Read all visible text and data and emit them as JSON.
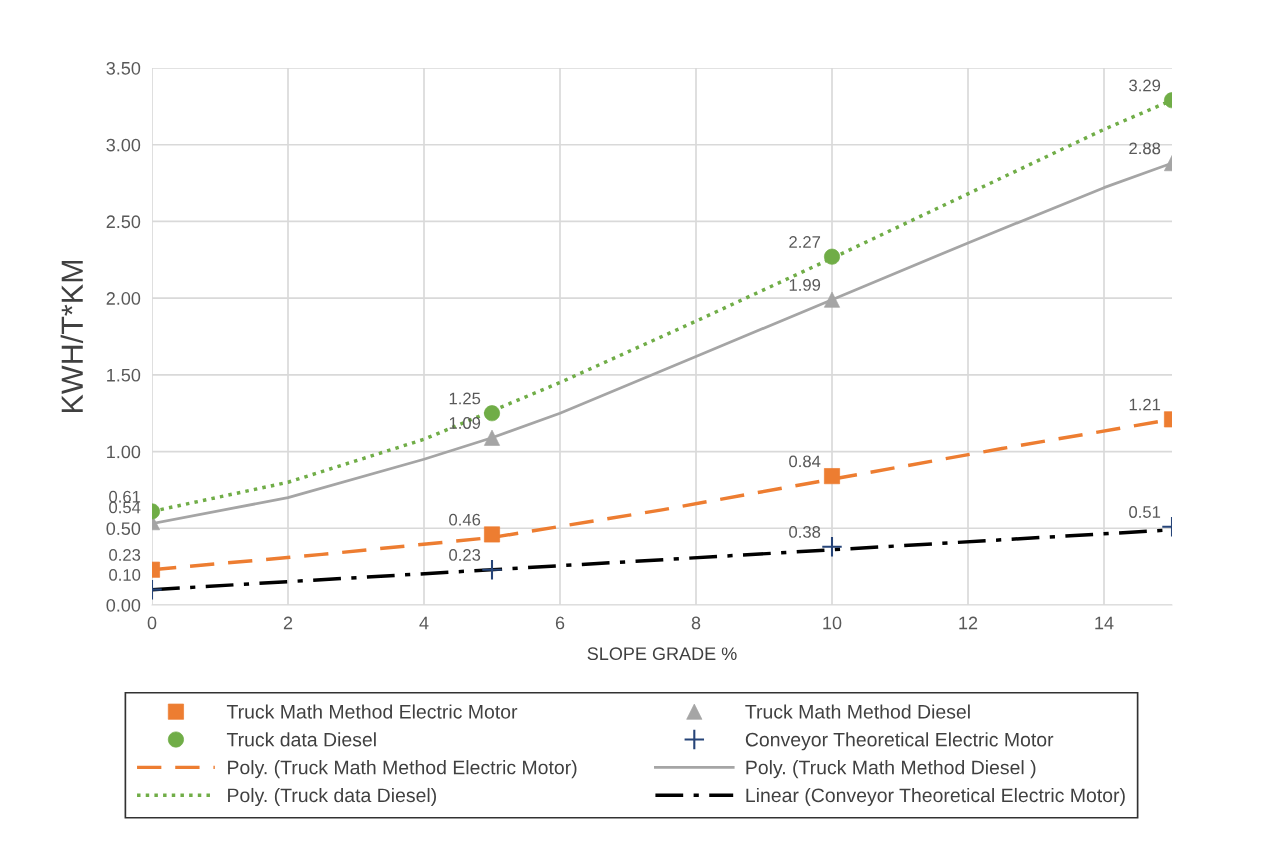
{
  "chart_data": {
    "type": "scatter",
    "xlabel": "SLOPE GRADE %",
    "ylabel": "KWH/T*KM",
    "xlim": [
      0,
      15
    ],
    "xticks": [
      0,
      2,
      4,
      6,
      8,
      10,
      12,
      14
    ],
    "ylim": [
      0,
      3.5
    ],
    "yticks": [
      {
        "value": 0,
        "label": "0.00"
      },
      {
        "value": 0.5,
        "label": "0.50"
      },
      {
        "value": 1,
        "label": "1.00"
      },
      {
        "value": 1.5,
        "label": "1.50"
      },
      {
        "value": 2,
        "label": "2.00"
      },
      {
        "value": 2.5,
        "label": "2.50"
      },
      {
        "value": 3,
        "label": "3.00"
      },
      {
        "value": 3.5,
        "label": "3.50"
      }
    ],
    "grid": true,
    "legend": "bottom",
    "series": [
      {
        "name": "Truck Math Method Electric Motor",
        "marker": "square",
        "color": "#ed7d31",
        "x": [
          0,
          5,
          10,
          15
        ],
        "values": [
          0.23,
          0.46,
          0.84,
          1.21
        ],
        "value_labels": [
          "0.23",
          "0.46",
          "0.84",
          "1.21"
        ]
      },
      {
        "name": "Truck Math Method Diesel",
        "marker": "triangle",
        "color": "#a5a5a5",
        "x": [
          0,
          5,
          10,
          15
        ],
        "values": [
          0.54,
          1.09,
          1.99,
          2.88
        ],
        "value_labels": [
          "0.54",
          "1.09",
          "1.99",
          "2.88"
        ]
      },
      {
        "name": "Truck data Diesel",
        "marker": "circle",
        "color": "#70ad47",
        "x": [
          0,
          5,
          10,
          15
        ],
        "values": [
          0.61,
          1.25,
          2.27,
          3.29
        ],
        "value_labels": [
          "0.61",
          "1.25",
          "2.27",
          "3.29"
        ]
      },
      {
        "name": "Conveyor Theoretical Electric Motor",
        "marker": "cross",
        "color": "#264478",
        "x": [
          0,
          5,
          10,
          15
        ],
        "values": [
          0.1,
          0.23,
          0.38,
          0.51
        ],
        "value_labels": [
          "0.10",
          "0.23",
          "0.38",
          "0.51"
        ]
      },
      {
        "name": "Poly. (Truck Math Method Electric Motor)",
        "type": "line",
        "line_style": "dashed",
        "color": "#ed7d31",
        "x": [
          0,
          2.5,
          5,
          7.5,
          10,
          12.5,
          15
        ],
        "values": [
          0.23,
          0.33,
          0.44,
          0.62,
          0.82,
          1.02,
          1.21
        ]
      },
      {
        "name": "Poly. (Truck Math Method Diesel )",
        "type": "line",
        "line_style": "solid",
        "color": "#a5a5a5",
        "x": [
          0,
          2,
          4,
          5,
          6,
          8,
          10,
          12,
          14,
          15
        ],
        "values": [
          0.53,
          0.7,
          0.95,
          1.09,
          1.25,
          1.62,
          1.99,
          2.36,
          2.72,
          2.88
        ]
      },
      {
        "name": "Poly. (Truck data Diesel)",
        "type": "line",
        "line_style": "dotted",
        "color": "#70ad47",
        "x": [
          0,
          2,
          4,
          6,
          8,
          10,
          12,
          14,
          15
        ],
        "values": [
          0.61,
          0.8,
          1.08,
          1.45,
          1.85,
          2.26,
          2.68,
          3.1,
          3.29
        ]
      },
      {
        "name": "Linear (Conveyor Theoretical Electric Motor)",
        "type": "line",
        "line_style": "dashdot",
        "color": "#000000",
        "x": [
          0,
          15
        ],
        "values": [
          0.1,
          0.49
        ]
      }
    ]
  }
}
